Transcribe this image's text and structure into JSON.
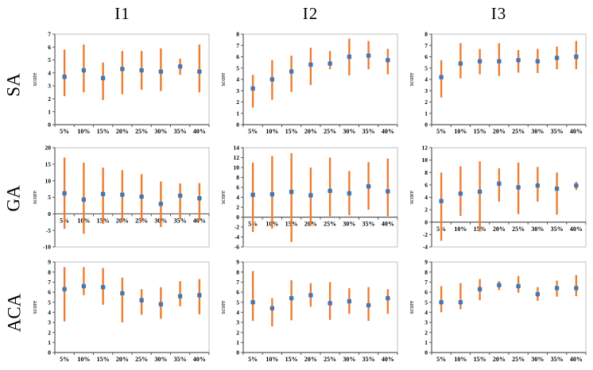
{
  "columns": [
    "I1",
    "I2",
    "I3"
  ],
  "rows": [
    "SA",
    "GA",
    "ACA"
  ],
  "colors": {
    "error_bar": "#ED7D31",
    "marker": "#4576B5",
    "axis": "#595959",
    "plot_border": "#BFBFBF",
    "text": "#000000"
  },
  "chart_data": [
    {
      "type": "scatter",
      "row": "SA",
      "col": "I1",
      "ylabel": "score",
      "categories": [
        "5%",
        "10%",
        "15%",
        "20%",
        "25%",
        "30%",
        "35%",
        "40%"
      ],
      "ylim": [
        0,
        7
      ],
      "ytick_step": 1,
      "grid": false,
      "legend": "none",
      "series": [
        {
          "name": "mean",
          "values": [
            3.7,
            4.2,
            3.6,
            4.3,
            4.2,
            4.1,
            4.5,
            4.1
          ]
        }
      ],
      "error_low": [
        2.2,
        2.5,
        1.9,
        2.35,
        2.7,
        2.6,
        3.85,
        2.5
      ],
      "error_high": [
        5.8,
        6.2,
        4.8,
        5.7,
        5.7,
        5.9,
        5.1,
        6.2
      ]
    },
    {
      "type": "scatter",
      "row": "SA",
      "col": "I2",
      "ylabel": "score",
      "categories": [
        "5%",
        "10%",
        "15%",
        "20%",
        "25%",
        "30%",
        "35%",
        "40%"
      ],
      "ylim": [
        0,
        8
      ],
      "ytick_step": 1,
      "grid": false,
      "legend": "none",
      "series": [
        {
          "name": "mean",
          "values": [
            3.2,
            4.0,
            4.7,
            5.3,
            5.4,
            6.0,
            6.1,
            5.7
          ]
        }
      ],
      "error_low": [
        1.5,
        2.2,
        2.9,
        3.5,
        4.9,
        4.35,
        4.9,
        4.45
      ],
      "error_high": [
        4.4,
        5.7,
        6.1,
        6.8,
        6.5,
        7.6,
        7.4,
        6.7
      ]
    },
    {
      "type": "scatter",
      "row": "SA",
      "col": "I3",
      "ylabel": "score",
      "categories": [
        "5%",
        "10%",
        "15%",
        "20%",
        "25%",
        "30%",
        "35%",
        "40%"
      ],
      "ylim": [
        0,
        8
      ],
      "ytick_step": 1,
      "grid": false,
      "legend": "none",
      "series": [
        {
          "name": "mean",
          "values": [
            4.2,
            5.4,
            5.6,
            5.6,
            5.7,
            5.6,
            5.9,
            6.0
          ]
        }
      ],
      "error_low": [
        2.4,
        4.1,
        4.45,
        4.3,
        4.6,
        4.55,
        4.9,
        4.9
      ],
      "error_high": [
        5.7,
        7.2,
        6.7,
        7.2,
        6.6,
        6.7,
        6.9,
        7.4
      ]
    },
    {
      "type": "scatter",
      "row": "GA",
      "col": "I1",
      "ylabel": "score",
      "categories": [
        "5%",
        "10%",
        "15%",
        "20%",
        "25%",
        "30%",
        "35%",
        "40%"
      ],
      "ylim": [
        -10,
        20
      ],
      "ytick_step": 5,
      "grid": false,
      "legend": "none",
      "series": [
        {
          "name": "mean",
          "values": [
            6.2,
            4.3,
            6.0,
            5.8,
            5.2,
            3.0,
            5.5,
            4.7
          ]
        }
      ],
      "error_low": [
        -4.5,
        -6.0,
        -3.0,
        -2.5,
        -2.5,
        -4.0,
        -1.5,
        -2.0
      ],
      "error_high": [
        17.0,
        15.5,
        14.0,
        13.2,
        12.0,
        9.8,
        9.2,
        9.3
      ]
    },
    {
      "type": "scatter",
      "row": "GA",
      "col": "I2",
      "ylabel": "score",
      "categories": [
        "5%",
        "10%",
        "15%",
        "20%",
        "25%",
        "30%",
        "35%",
        "40%"
      ],
      "ylim": [
        -6,
        14
      ],
      "ytick_step": 2,
      "grid": false,
      "legend": "none",
      "series": [
        {
          "name": "mean",
          "values": [
            4.5,
            4.6,
            5.1,
            4.4,
            5.3,
            4.8,
            6.2,
            5.2
          ]
        }
      ],
      "error_low": [
        -3.0,
        -2.3,
        -5.0,
        -1.8,
        0.2,
        0.4,
        1.5,
        0.2
      ],
      "error_high": [
        11.0,
        12.3,
        12.9,
        10.0,
        12.0,
        9.3,
        11.1,
        11.8
      ]
    },
    {
      "type": "scatter",
      "row": "GA",
      "col": "I3",
      "ylabel": "score",
      "categories": [
        "5%",
        "10%",
        "15%",
        "20%",
        "25%",
        "30%",
        "35%",
        "40%"
      ],
      "ylim": [
        -4,
        12
      ],
      "ytick_step": 2,
      "grid": false,
      "legend": "none",
      "series": [
        {
          "name": "mean",
          "values": [
            3.4,
            4.6,
            4.9,
            6.2,
            5.6,
            5.9,
            5.4,
            5.9
          ]
        }
      ],
      "error_low": [
        -3.0,
        1.0,
        -1.5,
        3.3,
        1.3,
        3.3,
        1.2,
        5.2
      ],
      "error_high": [
        8.0,
        9.0,
        9.8,
        8.7,
        9.6,
        8.9,
        8.0,
        6.5
      ]
    },
    {
      "type": "scatter",
      "row": "ACA",
      "col": "I1",
      "ylabel": "score",
      "categories": [
        "5%",
        "10%",
        "15%",
        "20%",
        "25%",
        "30%",
        "35%",
        "40%"
      ],
      "ylim": [
        0,
        9
      ],
      "ytick_step": 1,
      "grid": false,
      "legend": "none",
      "series": [
        {
          "name": "mean",
          "values": [
            6.3,
            6.6,
            6.5,
            5.9,
            5.2,
            4.8,
            5.6,
            5.7
          ]
        }
      ],
      "error_low": [
        3.1,
        5.7,
        4.75,
        3.0,
        3.75,
        3.35,
        4.6,
        3.8
      ],
      "error_high": [
        8.5,
        8.5,
        8.4,
        7.45,
        6.3,
        6.5,
        7.1,
        7.3
      ]
    },
    {
      "type": "scatter",
      "row": "ACA",
      "col": "I2",
      "ylabel": "score",
      "categories": [
        "5%",
        "10%",
        "15%",
        "20%",
        "25%",
        "30%",
        "35%",
        "40%"
      ],
      "ylim": [
        0,
        9
      ],
      "ytick_step": 1,
      "grid": false,
      "legend": "none",
      "series": [
        {
          "name": "mean",
          "values": [
            5.0,
            4.4,
            5.4,
            5.7,
            4.9,
            5.1,
            4.7,
            5.4
          ]
        }
      ],
      "error_low": [
        3.15,
        2.6,
        3.2,
        4.55,
        3.25,
        3.85,
        3.15,
        3.85
      ],
      "error_high": [
        8.1,
        5.4,
        7.2,
        6.9,
        7.0,
        6.4,
        6.5,
        6.3
      ]
    },
    {
      "type": "scatter",
      "row": "ACA",
      "col": "I3",
      "ylabel": "score",
      "categories": [
        "5%",
        "10%",
        "15%",
        "20%",
        "25%",
        "30%",
        "35%",
        "40%"
      ],
      "ylim": [
        0,
        9
      ],
      "ytick_step": 1,
      "grid": false,
      "legend": "none",
      "series": [
        {
          "name": "mean",
          "values": [
            5.0,
            5.0,
            6.3,
            6.7,
            6.6,
            5.8,
            6.4,
            6.4
          ]
        }
      ],
      "error_low": [
        4.0,
        4.3,
        5.2,
        6.2,
        5.95,
        5.15,
        5.55,
        5.6
      ],
      "error_high": [
        6.6,
        6.9,
        7.3,
        7.1,
        7.6,
        6.5,
        7.15,
        7.7
      ]
    }
  ]
}
